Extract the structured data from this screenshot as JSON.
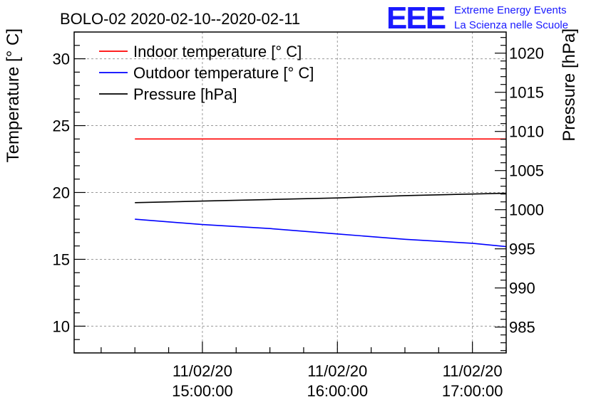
{
  "header": {
    "title": "BOLO-02 2020-02-10--2020-02-11"
  },
  "logo": {
    "mark": "EEE",
    "line1": "Extreme Energy Events",
    "line2": "La Scienza nelle Scuole",
    "color": "#1a1aff"
  },
  "chart_data": {
    "type": "line",
    "x_type": "time",
    "x_range": [
      "2020-02-11 14:03:00",
      "2020-02-11 17:15:00"
    ],
    "x_ticks": [
      {
        "date": "11/02/20",
        "time": "15:00:00",
        "value": "2020-02-11 15:00:00"
      },
      {
        "date": "11/02/20",
        "time": "16:00:00",
        "value": "2020-02-11 16:00:00"
      },
      {
        "date": "11/02/20",
        "time": "17:00:00",
        "value": "2020-02-11 17:00:00"
      }
    ],
    "y_left": {
      "label": "Temperature [° C]",
      "range": [
        8,
        32
      ],
      "ticks": [
        "10",
        "15",
        "20",
        "25",
        "30"
      ]
    },
    "y_right": {
      "label": "Pressure [hPa]",
      "range": [
        981.7,
        1022.7
      ],
      "ticks": [
        "985",
        "990",
        "995",
        "1000",
        "1005",
        "1010",
        "1015",
        "1020"
      ]
    },
    "grid": true,
    "legend_position": "top-left",
    "series": [
      {
        "name": "Indoor temperature [° C]",
        "axis": "left",
        "color": "#ff0000",
        "x": [
          "2020-02-11 14:30:00",
          "2020-02-11 17:15:00"
        ],
        "y": [
          24,
          24
        ]
      },
      {
        "name": "Outdoor temperature [° C]",
        "axis": "left",
        "color": "#0000ff",
        "x": [
          "2020-02-11 14:30:00",
          "2020-02-11 15:00:00",
          "2020-02-11 15:30:00",
          "2020-02-11 16:00:00",
          "2020-02-11 16:30:00",
          "2020-02-11 17:00:00",
          "2020-02-11 17:15:00"
        ],
        "y": [
          18.0,
          17.6,
          17.3,
          16.9,
          16.5,
          16.2,
          15.95
        ]
      },
      {
        "name": "Pressure [hPa]",
        "axis": "right",
        "color": "#000000",
        "x": [
          "2020-02-11 14:30:00",
          "2020-02-11 15:00:00",
          "2020-02-11 15:30:00",
          "2020-02-11 16:00:00",
          "2020-02-11 16:30:00",
          "2020-02-11 17:00:00",
          "2020-02-11 17:15:00"
        ],
        "y": [
          1000.9,
          1001.1,
          1001.3,
          1001.5,
          1001.8,
          1002.0,
          1002.1
        ]
      }
    ]
  }
}
